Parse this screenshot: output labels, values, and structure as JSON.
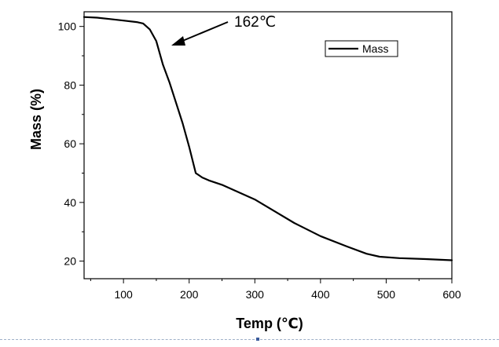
{
  "chart_data": {
    "type": "line",
    "title": "",
    "xlabel": "Temp (℃)",
    "ylabel": "Mass (%)",
    "xlim": [
      40,
      600
    ],
    "ylim": [
      14,
      105
    ],
    "xticks": [
      100,
      200,
      300,
      400,
      500,
      600
    ],
    "yticks": [
      20,
      40,
      60,
      80,
      100
    ],
    "x_tick_labels": [
      "100",
      "200",
      "300",
      "400",
      "500",
      "600"
    ],
    "y_tick_labels": [
      "20",
      "40",
      "60",
      "80",
      "100"
    ],
    "grid": false,
    "legend_position": "top-right",
    "series": [
      {
        "name": "Mass",
        "color": "#000000",
        "x": [
          40,
          60,
          80,
          100,
          120,
          130,
          140,
          150,
          160,
          170,
          180,
          190,
          200,
          210,
          220,
          230,
          250,
          270,
          300,
          330,
          360,
          400,
          440,
          470,
          490,
          520,
          560,
          600
        ],
        "y": [
          103.2,
          103.0,
          102.5,
          102.0,
          101.5,
          101.0,
          99.0,
          95.0,
          87.0,
          81.0,
          74.0,
          67.0,
          59.0,
          50.0,
          48.5,
          47.5,
          46.0,
          44.0,
          41.0,
          37.0,
          33.0,
          28.5,
          25.0,
          22.5,
          21.5,
          21.0,
          20.7,
          20.3
        ]
      }
    ],
    "annotations": [
      {
        "text": "162℃",
        "arrow_to": {
          "x": 162,
          "y": 98
        }
      }
    ]
  }
}
